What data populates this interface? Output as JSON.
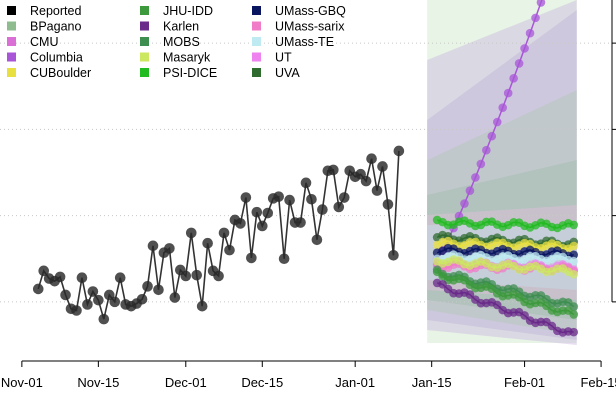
{
  "chart_data": {
    "type": "line",
    "title": "",
    "xlabel": "",
    "ylabel": "",
    "x_ticks": [
      "Nov-01",
      "Nov-15",
      "Dec-01",
      "Dec-15",
      "Jan-01",
      "Jan-15",
      "Feb-01",
      "Feb-15"
    ],
    "xlim": [
      "2020-10-28",
      "2021-02-17"
    ],
    "ylim": [
      0,
      4
    ],
    "grid": "horizontal dotted",
    "legend": "top-left, 3 columns",
    "forecast_start": "2021-01-16",
    "forecast_end": "2021-02-10",
    "legend_entries": [
      {
        "name": "Reported",
        "color": "#000000"
      },
      {
        "name": "BPagano",
        "color": "#8fbc8f"
      },
      {
        "name": "CMU",
        "color": "#da70d6"
      },
      {
        "name": "Columbia",
        "color": "#a855d8"
      },
      {
        "name": "CUBoulder",
        "color": "#e8e040"
      },
      {
        "name": "JHU-IDD",
        "color": "#3c9a3c"
      },
      {
        "name": "Karlen",
        "color": "#6a2a8a"
      },
      {
        "name": "MOBS",
        "color": "#3e8e50"
      },
      {
        "name": "Masaryk",
        "color": "#cce860"
      },
      {
        "name": "PSI-DICE",
        "color": "#22bb22"
      },
      {
        "name": "UMass-GBQ",
        "color": "#0a1560"
      },
      {
        "name": "UMass-sarix",
        "color": "#f07cc8"
      },
      {
        "name": "UMass-TE",
        "color": "#bfeaf2"
      },
      {
        "name": "UT",
        "color": "#ee82ee"
      },
      {
        "name": "UVA",
        "color": "#2f6a2f"
      }
    ],
    "reported": {
      "name": "Reported",
      "x": [
        "2020-11-04",
        "2020-11-05",
        "2020-11-06",
        "2020-11-07",
        "2020-11-08",
        "2020-11-09",
        "2020-11-10",
        "2020-11-11",
        "2020-11-12",
        "2020-11-13",
        "2020-11-14",
        "2020-11-15",
        "2020-11-16",
        "2020-11-17",
        "2020-11-18",
        "2020-11-19",
        "2020-11-20",
        "2020-11-21",
        "2020-11-22",
        "2020-11-23",
        "2020-11-24",
        "2020-11-25",
        "2020-11-26",
        "2020-11-27",
        "2020-11-28",
        "2020-11-29",
        "2020-11-30",
        "2020-12-01",
        "2020-12-02",
        "2020-12-03",
        "2020-12-04",
        "2020-12-05",
        "2020-12-06",
        "2020-12-07",
        "2020-12-08",
        "2020-12-09",
        "2020-12-10",
        "2020-12-11",
        "2020-12-12",
        "2020-12-13",
        "2020-12-14",
        "2020-12-15",
        "2020-12-16",
        "2020-12-17",
        "2020-12-18",
        "2020-12-19",
        "2020-12-20",
        "2020-12-21",
        "2020-12-22",
        "2020-12-23",
        "2020-12-24",
        "2020-12-25",
        "2020-12-26",
        "2020-12-27",
        "2020-12-28",
        "2020-12-29",
        "2020-12-30",
        "2020-12-31",
        "2021-01-01",
        "2021-01-02",
        "2021-01-03",
        "2021-01-04",
        "2021-01-05",
        "2021-01-06",
        "2021-01-07",
        "2021-01-08",
        "2021-01-09"
      ],
      "y": [
        0.65,
        0.86,
        0.77,
        0.74,
        0.79,
        0.58,
        0.42,
        0.4,
        0.78,
        0.47,
        0.62,
        0.52,
        0.3,
        0.58,
        0.5,
        0.78,
        0.47,
        0.45,
        0.48,
        0.53,
        0.68,
        1.15,
        0.64,
        1.07,
        1.12,
        0.55,
        0.87,
        0.8,
        1.3,
        0.81,
        0.45,
        1.18,
        0.86,
        0.8,
        1.3,
        1.1,
        1.45,
        1.41,
        1.71,
        1.01,
        1.54,
        1.38,
        1.53,
        1.7,
        1.72,
        1.0,
        1.68,
        1.42,
        1.42,
        1.88,
        1.69,
        1.22,
        1.57,
        2.02,
        2.03,
        1.6,
        1.71,
        2.02,
        1.95,
        1.98,
        1.9,
        2.16,
        1.79,
        2.07,
        1.63,
        1.04,
        2.25
      ]
    },
    "forecasts": [
      {
        "name": "Columbia",
        "color": "#a855d8",
        "start": 1.0,
        "end": 4.38,
        "shape": "rise"
      },
      {
        "name": "PSI-DICE",
        "color": "#22bb22",
        "start": 1.42,
        "end": 1.38,
        "shape": "flat"
      },
      {
        "name": "UVA",
        "color": "#2f6a2f",
        "start": 1.25,
        "end": 1.17,
        "shape": "flat"
      },
      {
        "name": "CUBoulder",
        "color": "#e8e040",
        "start": 1.18,
        "end": 1.14,
        "shape": "flat"
      },
      {
        "name": "UMass-GBQ",
        "color": "#0a1560",
        "start": 1.1,
        "end": 1.06,
        "shape": "flat"
      },
      {
        "name": "UMass-TE",
        "color": "#bfeaf2",
        "start": 1.02,
        "end": 1.0,
        "shape": "flat"
      },
      {
        "name": "UT",
        "color": "#ee82ee",
        "start": 0.95,
        "end": 0.9,
        "shape": "flat"
      },
      {
        "name": "UMass-sarix",
        "color": "#f07cc8",
        "start": 0.92,
        "end": 0.88,
        "shape": "flat"
      },
      {
        "name": "Masaryk",
        "color": "#cce860",
        "start": 0.98,
        "end": 0.85,
        "shape": "flat"
      },
      {
        "name": "MOBS",
        "color": "#3e8e50",
        "start": 0.85,
        "end": 0.45,
        "shape": "decline"
      },
      {
        "name": "JHU-IDD",
        "color": "#3c9a3c",
        "start": 0.82,
        "end": 0.35,
        "shape": "decline"
      },
      {
        "name": "Karlen",
        "color": "#6a2a8a",
        "start": 0.7,
        "end": 0.12,
        "shape": "decline"
      }
    ]
  }
}
